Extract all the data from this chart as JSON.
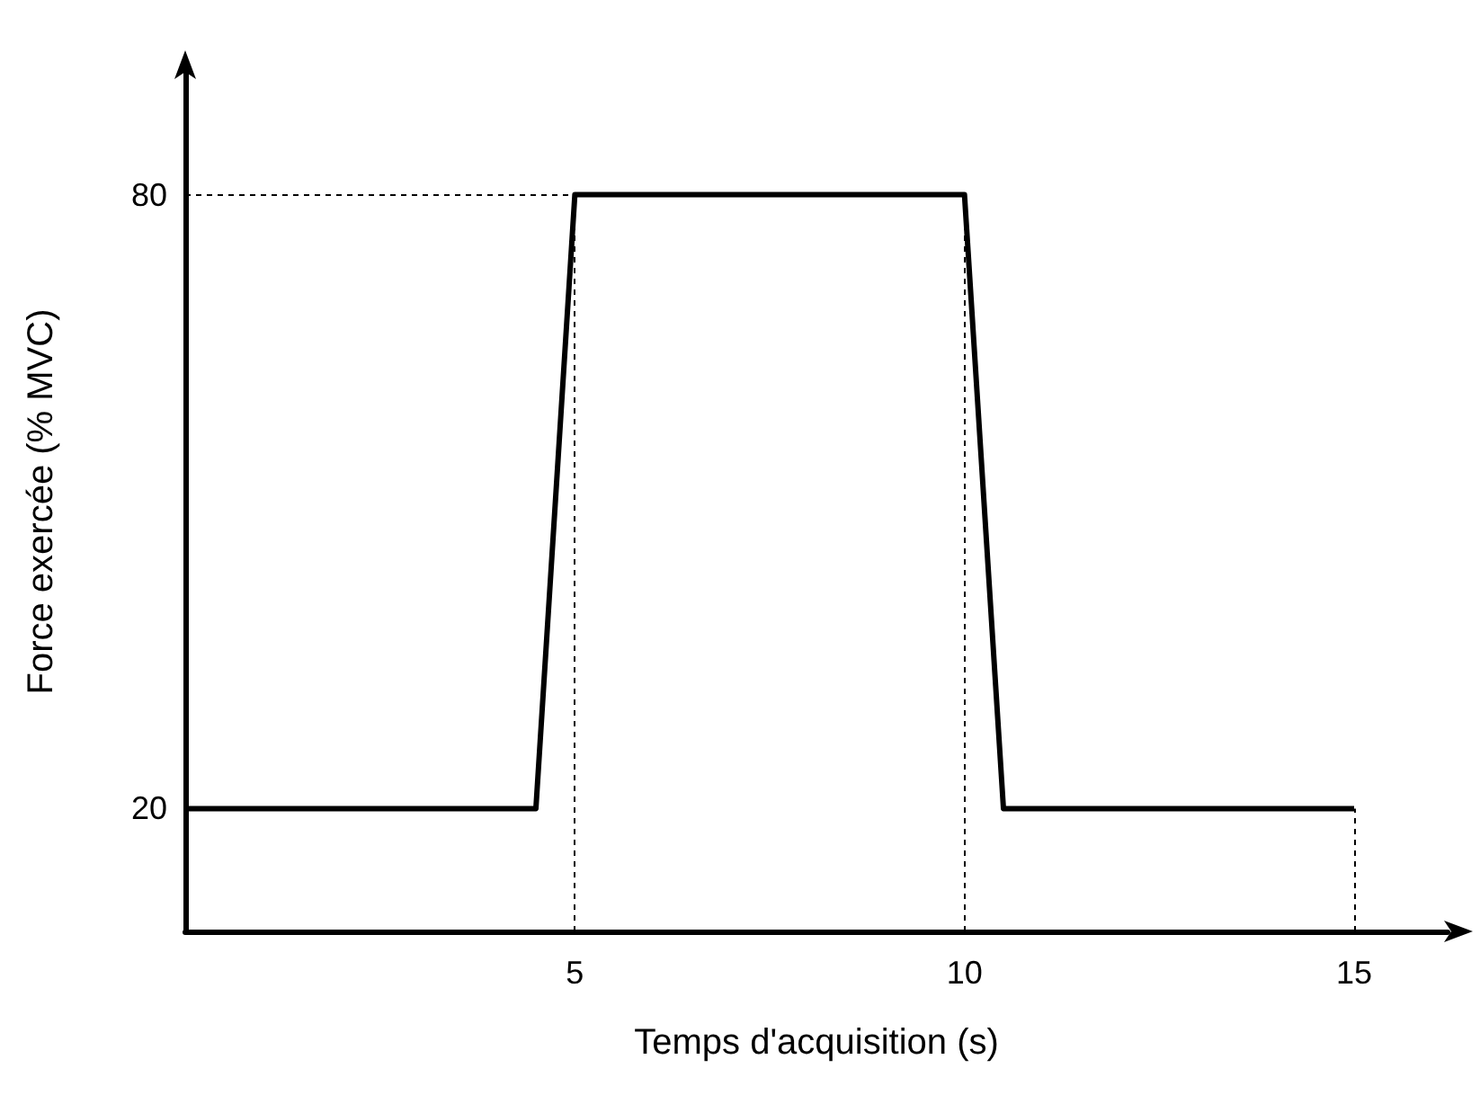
{
  "chart_data": {
    "type": "line",
    "xlabel": "Temps d'acquisition (s)",
    "ylabel": "Force exercée (% MVC)",
    "x": [
      0,
      4.5,
      5,
      10,
      10.5,
      15
    ],
    "series": [
      {
        "color": "#000000",
        "values": [
          20,
          20,
          80,
          80,
          20,
          20
        ]
      }
    ],
    "xlim": [
      0,
      16.2
    ],
    "xticks": [
      5,
      10,
      15
    ],
    "ylim": [
      8,
      92
    ],
    "yticks": [
      20,
      80
    ],
    "ref_lines": [
      {
        "axis": "x",
        "value": 5,
        "line_style": "dotted",
        "color": "#000000"
      },
      {
        "axis": "x",
        "value": 10,
        "line_style": "dotted",
        "color": "#000000"
      },
      {
        "axis": "x",
        "value": 15,
        "line_style": "dotted",
        "color": "#000000"
      },
      {
        "axis": "y",
        "value": 80,
        "line_style": "dotted",
        "color": "#000000"
      }
    ],
    "grid": false,
    "marker": "none",
    "line_style": "solid"
  }
}
